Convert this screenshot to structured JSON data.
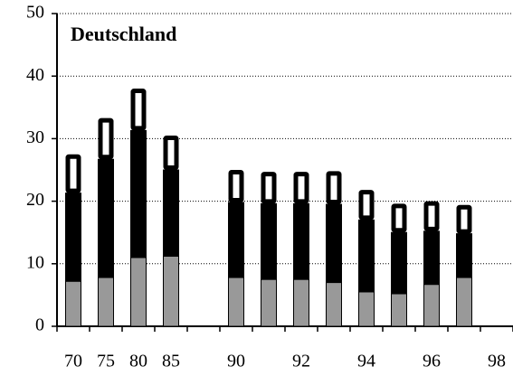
{
  "chart_data": {
    "type": "stacked_bar",
    "title": "Deutschland",
    "categories": [
      "70",
      "75",
      "80",
      "85",
      null,
      "90",
      null,
      "92",
      null,
      "94",
      null,
      "96",
      null,
      "98"
    ],
    "series": [
      {
        "color": "#999999",
        "values": [
          7.2,
          7.8,
          11,
          11.2,
          null,
          7.8,
          7.5,
          7.5,
          7.0,
          5.5,
          5.2,
          6.7,
          7.8,
          null
        ]
      },
      {
        "color": "#000000",
        "values": [
          14.1,
          18.9,
          20.3,
          13.8,
          null,
          12,
          12.1,
          12.1,
          12.5,
          11.5,
          9.8,
          8.5,
          7,
          null
        ]
      },
      {
        "color": "#ffffff",
        "values": [
          6.2,
          6.6,
          6.7,
          5.5,
          null,
          5.2,
          5.1,
          5.1,
          5.3,
          4.8,
          4.6,
          4.8,
          4.6,
          null
        ]
      }
    ],
    "ylim": [
      0,
      50
    ],
    "yticks": [
      0,
      10,
      20,
      30,
      40,
      50
    ],
    "grid": true
  }
}
